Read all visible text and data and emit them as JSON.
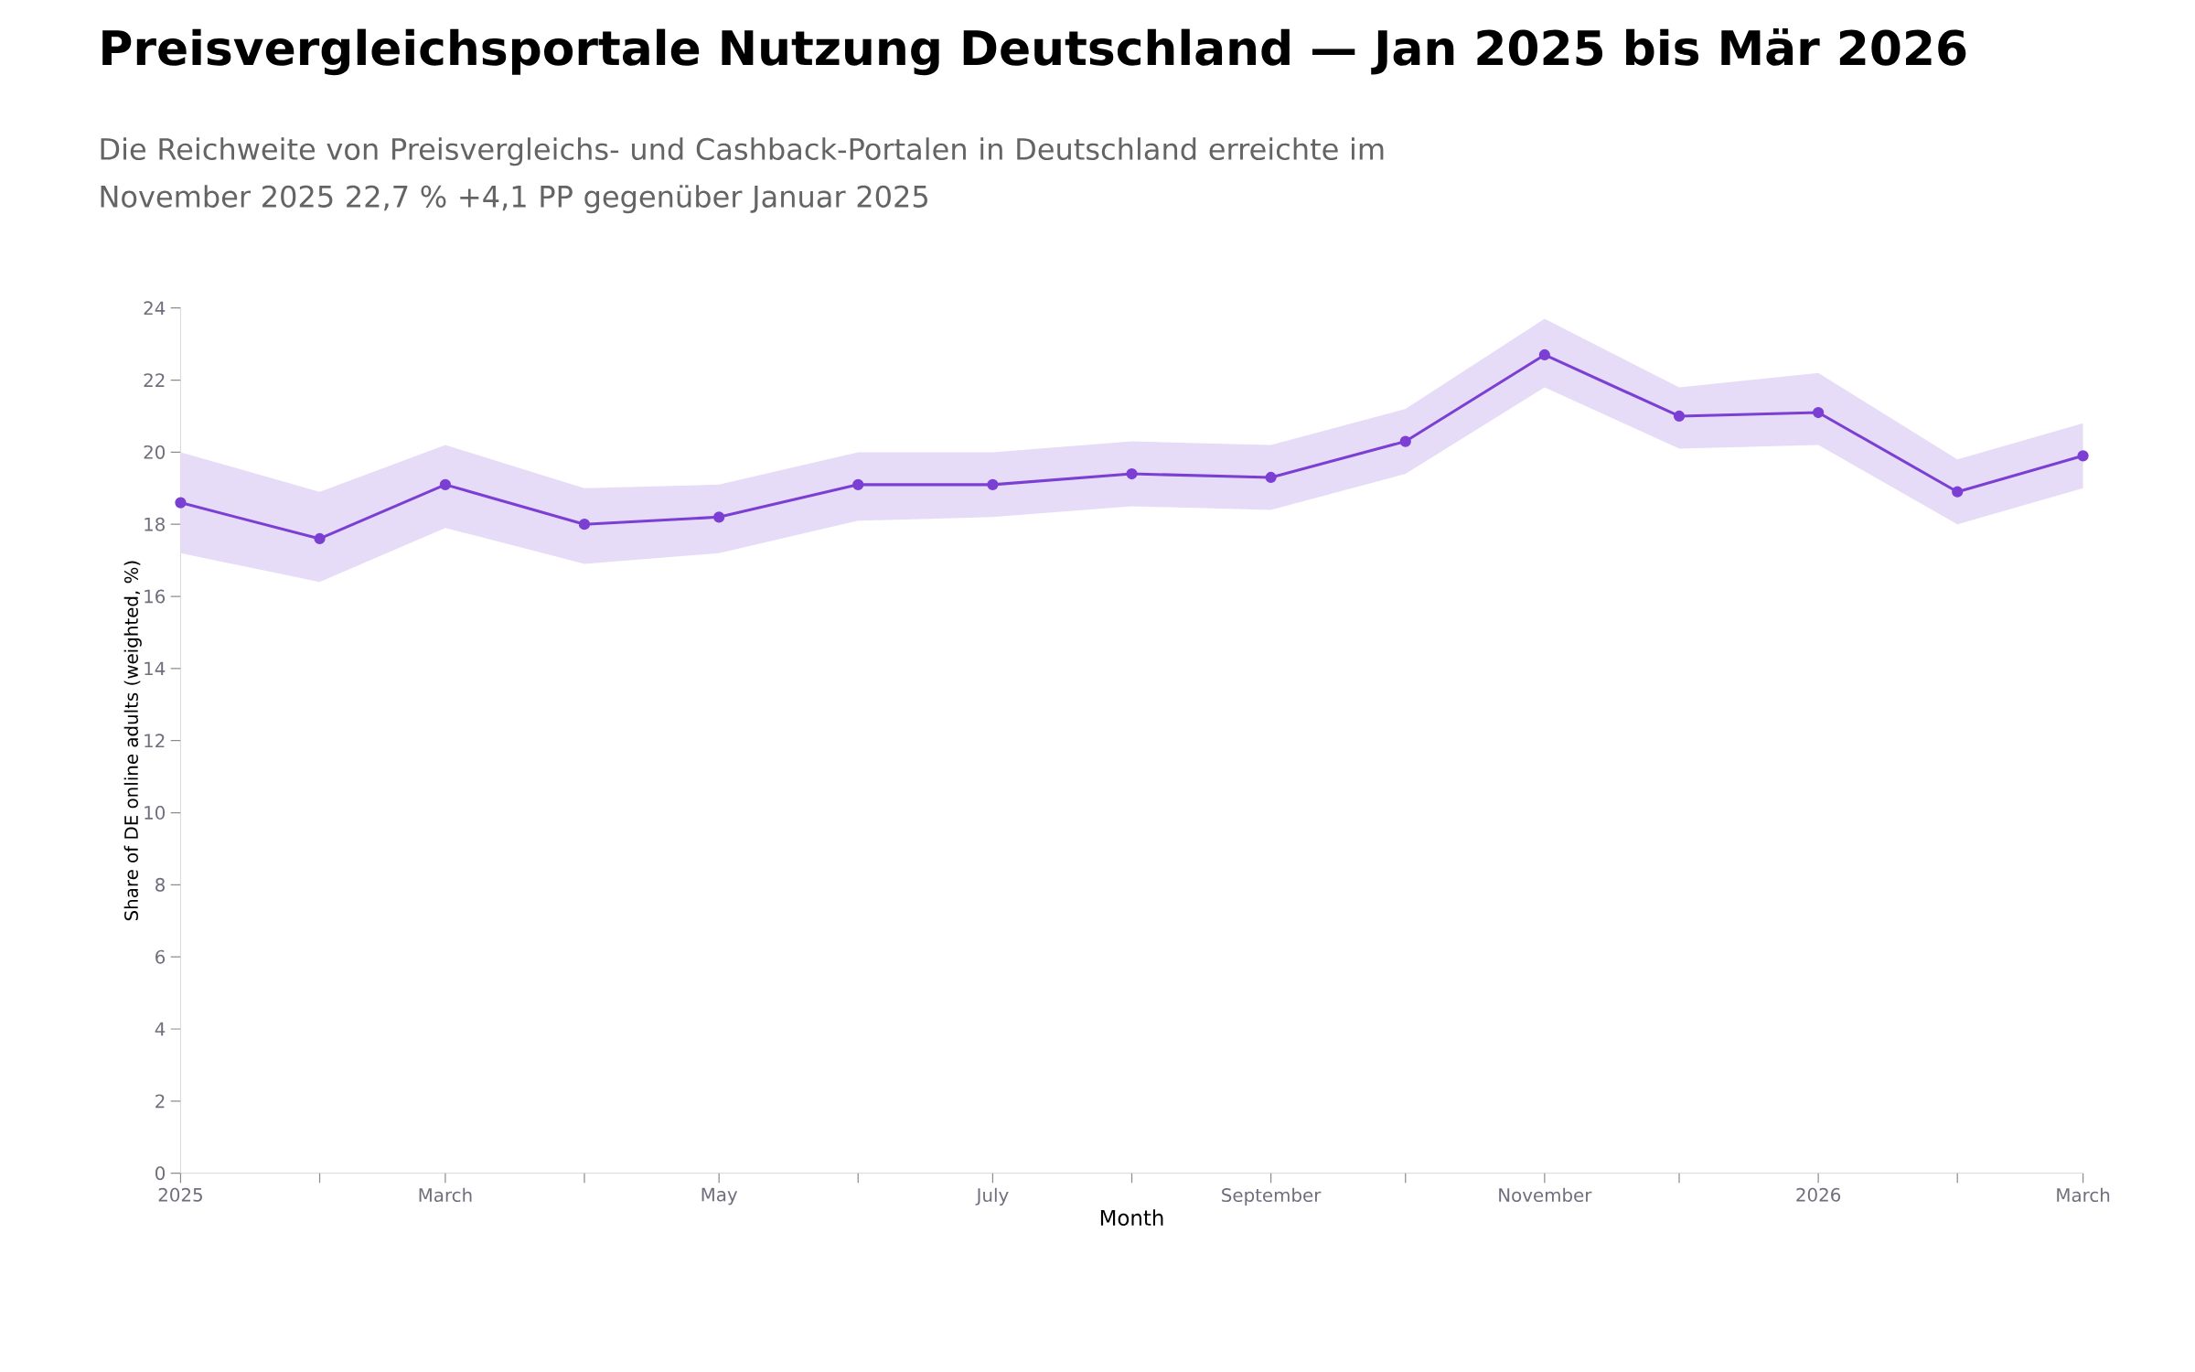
{
  "chart_data": {
    "type": "line",
    "title": "Preisvergleichsportale Nutzung Deutschland — Jan 2025 bis Mär 2026",
    "subtitle": "Die Reichweite von Preisvergleichs- und Cashback-Portalen in Deutschland erreichte im November 2025 22,7 % +4,1 PP gegenüber Januar 2025",
    "xlabel": "Month",
    "ylabel": "Share of DE online adults (weighted, %)",
    "x": [
      "2025-01",
      "2025-02",
      "2025-03",
      "2025-04",
      "2025-05",
      "2025-06",
      "2025-07",
      "2025-08",
      "2025-09",
      "2025-10",
      "2025-11",
      "2025-12",
      "2026-01",
      "2026-02",
      "2026-03"
    ],
    "series": [
      {
        "color": "#7b3fd4",
        "values": [
          18.6,
          17.6,
          19.1,
          18.0,
          18.2,
          19.1,
          19.1,
          19.4,
          19.3,
          20.3,
          22.7,
          21.0,
          21.1,
          18.9,
          19.9
        ],
        "upper": [
          20.0,
          18.9,
          20.2,
          19.0,
          19.1,
          20.0,
          20.0,
          20.3,
          20.2,
          21.2,
          23.7,
          21.8,
          22.2,
          19.8,
          20.8
        ],
        "lower": [
          17.2,
          16.4,
          17.9,
          16.9,
          17.2,
          18.1,
          18.2,
          18.5,
          18.4,
          19.4,
          21.8,
          20.1,
          20.2,
          18.0,
          19.0
        ]
      }
    ],
    "xlim": [
      "2025-01",
      "2026-03"
    ],
    "ylim": [
      0,
      24
    ],
    "xticks": [
      {
        "value": "2025-01",
        "label": "2025"
      },
      {
        "value": "2025-02",
        "label": null
      },
      {
        "value": "2025-03",
        "label": "March"
      },
      {
        "value": "2025-04",
        "label": null
      },
      {
        "value": "2025-05",
        "label": "May"
      },
      {
        "value": "2025-06",
        "label": null
      },
      {
        "value": "2025-07",
        "label": "July"
      },
      {
        "value": "2025-08",
        "label": null
      },
      {
        "value": "2025-09",
        "label": "September"
      },
      {
        "value": "2025-10",
        "label": null
      },
      {
        "value": "2025-11",
        "label": "November"
      },
      {
        "value": "2025-12",
        "label": null
      },
      {
        "value": "2026-01",
        "label": "2026"
      },
      {
        "value": "2026-02",
        "label": null
      },
      {
        "value": "2026-03",
        "label": "March"
      }
    ],
    "yticks": [
      0,
      2,
      4,
      6,
      8,
      10,
      12,
      14,
      16,
      18,
      20,
      22,
      24
    ],
    "grid": false,
    "marker": "circle",
    "line_style": "solid"
  }
}
